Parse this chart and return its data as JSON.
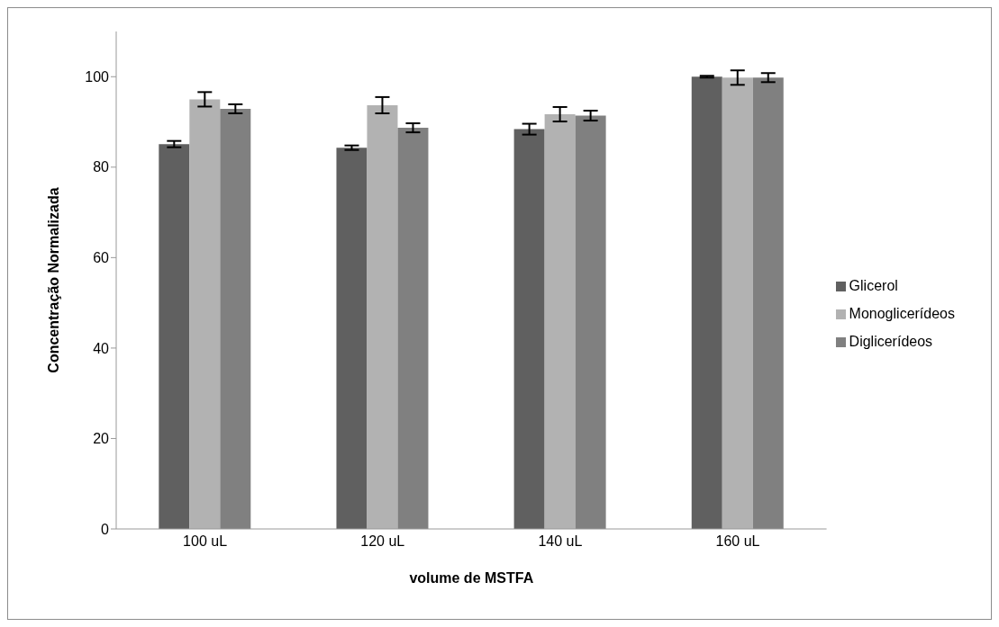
{
  "chart_data": {
    "type": "bar",
    "xlabel": "volume de MSTFA",
    "ylabel": "Concentração Normalizada",
    "categories": [
      "100 uL",
      "120 uL",
      "140 uL",
      "160 uL"
    ],
    "series": [
      {
        "name": "Glicerol",
        "color": "#606060",
        "values": [
          85.1,
          84.3,
          88.4,
          100
        ],
        "errors": [
          0.7,
          0.5,
          1.2,
          0.2
        ]
      },
      {
        "name": "Monoglicerídeos",
        "color": "#b2b2b2",
        "values": [
          95,
          93.7,
          91.7,
          99.8
        ],
        "errors": [
          1.6,
          1.8,
          1.6,
          1.6
        ]
      },
      {
        "name": "Diglicerídeos",
        "color": "#808080",
        "values": [
          92.9,
          88.7,
          91.4,
          99.8
        ],
        "errors": [
          1,
          1,
          1.1,
          1
        ]
      }
    ],
    "ylim": [
      0,
      110
    ],
    "yticks": [
      0,
      20,
      40,
      60,
      80,
      100
    ],
    "grid": false,
    "legend": "right"
  }
}
